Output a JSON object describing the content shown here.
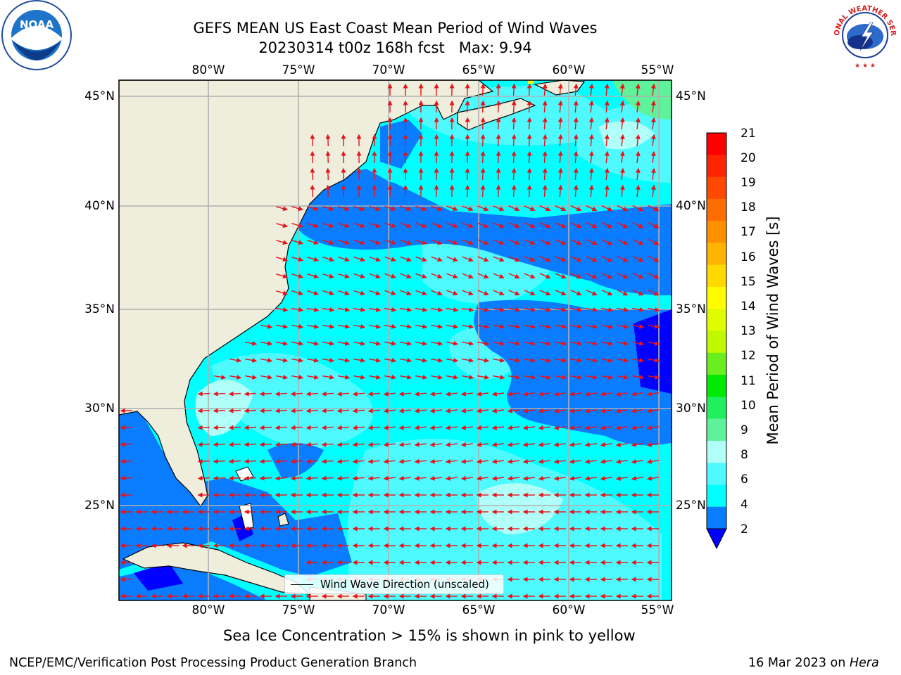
{
  "header": {
    "title_line1": "GEFS MEAN US East Coast Mean Period of Wind Waves",
    "title_line2": "20230314 t00z 168h fcst   Max: 9.94"
  },
  "logos": {
    "left": {
      "name": "noaa-logo",
      "text": "NOAA"
    },
    "right": {
      "name": "national-weather-service-logo",
      "text": "NATIONAL WEATHER SERVICE"
    }
  },
  "map": {
    "lon_labels": [
      "80°W",
      "75°W",
      "70°W",
      "65°W",
      "60°W",
      "55°W"
    ],
    "lat_labels": [
      "45°N",
      "40°N",
      "35°N",
      "30°N",
      "25°N"
    ],
    "legend_label": "Wind Wave Direction (unscaled)",
    "colors": {
      "land": "#efeddc",
      "water_2_4": "#0a7cff",
      "water_4_6": "#00ffff",
      "water_6_8": "#4ffaff",
      "water_8_9": "#b0fff8",
      "water_9_10": "#5ef29a",
      "under_2": "#0000ff",
      "arrow": "#e8121a",
      "grid": "#b0b0b0"
    }
  },
  "colorbar": {
    "label": "Mean Period of Wind Waves [s]",
    "ticks": [
      "21",
      "20",
      "19",
      "18",
      "17",
      "16",
      "15",
      "14",
      "13",
      "12",
      "11",
      "10",
      "9",
      "8",
      "6",
      "4",
      "2"
    ],
    "band_colors": [
      "#ff0000",
      "#ff2400",
      "#ff4800",
      "#ff6c00",
      "#ff9000",
      "#ffb400",
      "#ffd800",
      "#fffc00",
      "#e0fc00",
      "#c0f800",
      "#69ee1e",
      "#00e900",
      "#20f05e",
      "#5ef29a",
      "#b0fff8",
      "#4ffaff",
      "#00ffff",
      "#0a7cff"
    ],
    "extend_color": "#0000ff"
  },
  "notes": {
    "ice_note": "Sea Ice Concentration > 15% is shown in pink to yellow"
  },
  "footer": {
    "left": "NCEP/EMC/Verification Post Processing Product Generation Branch",
    "right_prefix": "16 Mar 2023 on ",
    "right_emph": "Hera"
  }
}
